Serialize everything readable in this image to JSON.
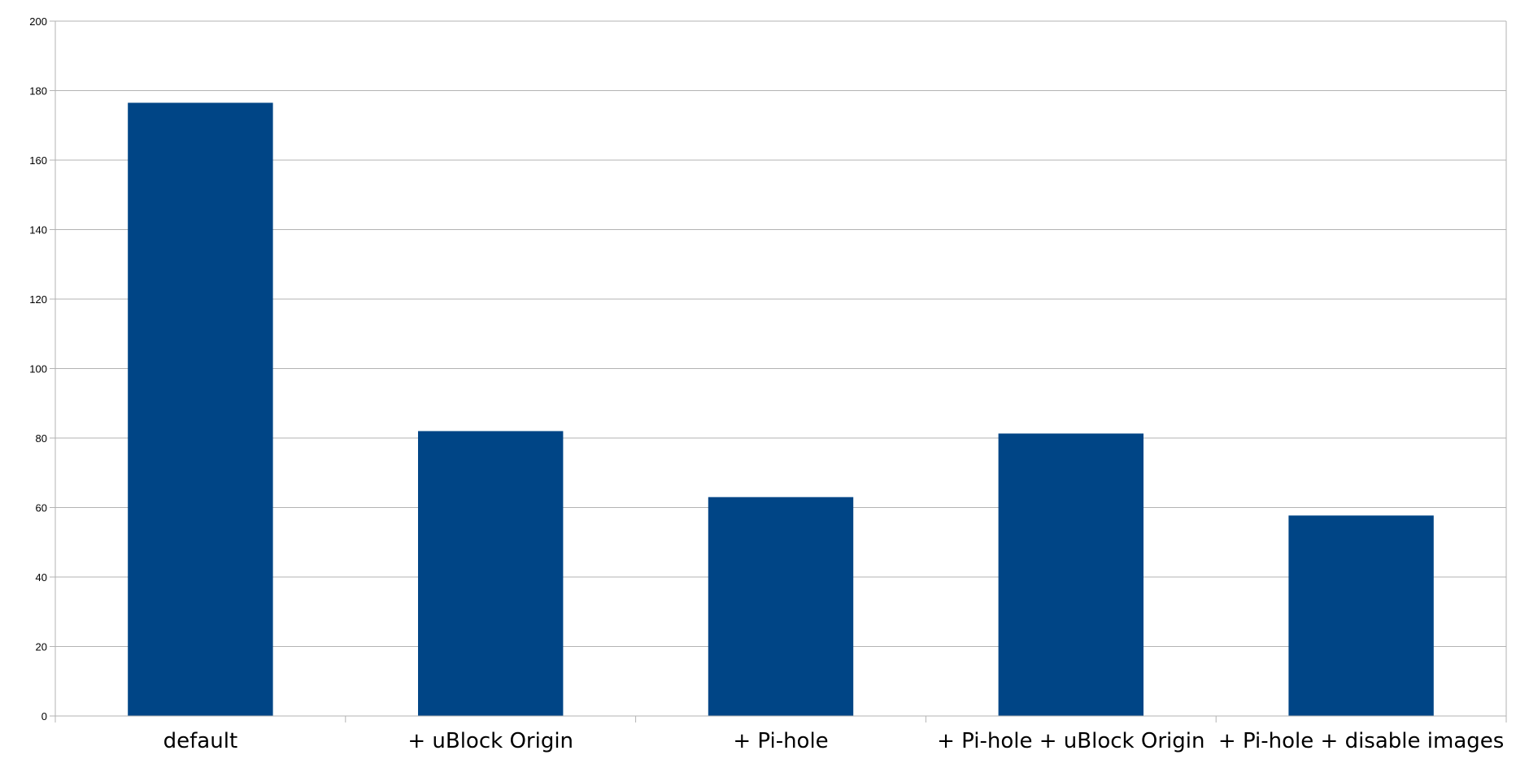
{
  "chart_data": {
    "type": "bar",
    "title": "",
    "xlabel": "",
    "ylabel": "",
    "categories": [
      "default",
      "+ uBlock Origin",
      "+ Pi-hole",
      "+ Pi-hole + uBlock Origin",
      "+ Pi-hole + disable images"
    ],
    "values": [
      176.5,
      82,
      63,
      81.3,
      57.7
    ],
    "ylim": [
      0,
      200
    ],
    "yticks": [
      "0",
      "20",
      "40",
      "60",
      "80",
      "100",
      "120",
      "140",
      "160",
      "180",
      "200"
    ],
    "grid": true,
    "legend": "none",
    "colors": {
      "bar": "#004586",
      "grid": "#b3b3b3",
      "axis": "#b3b3b3",
      "text": "#000000"
    }
  }
}
